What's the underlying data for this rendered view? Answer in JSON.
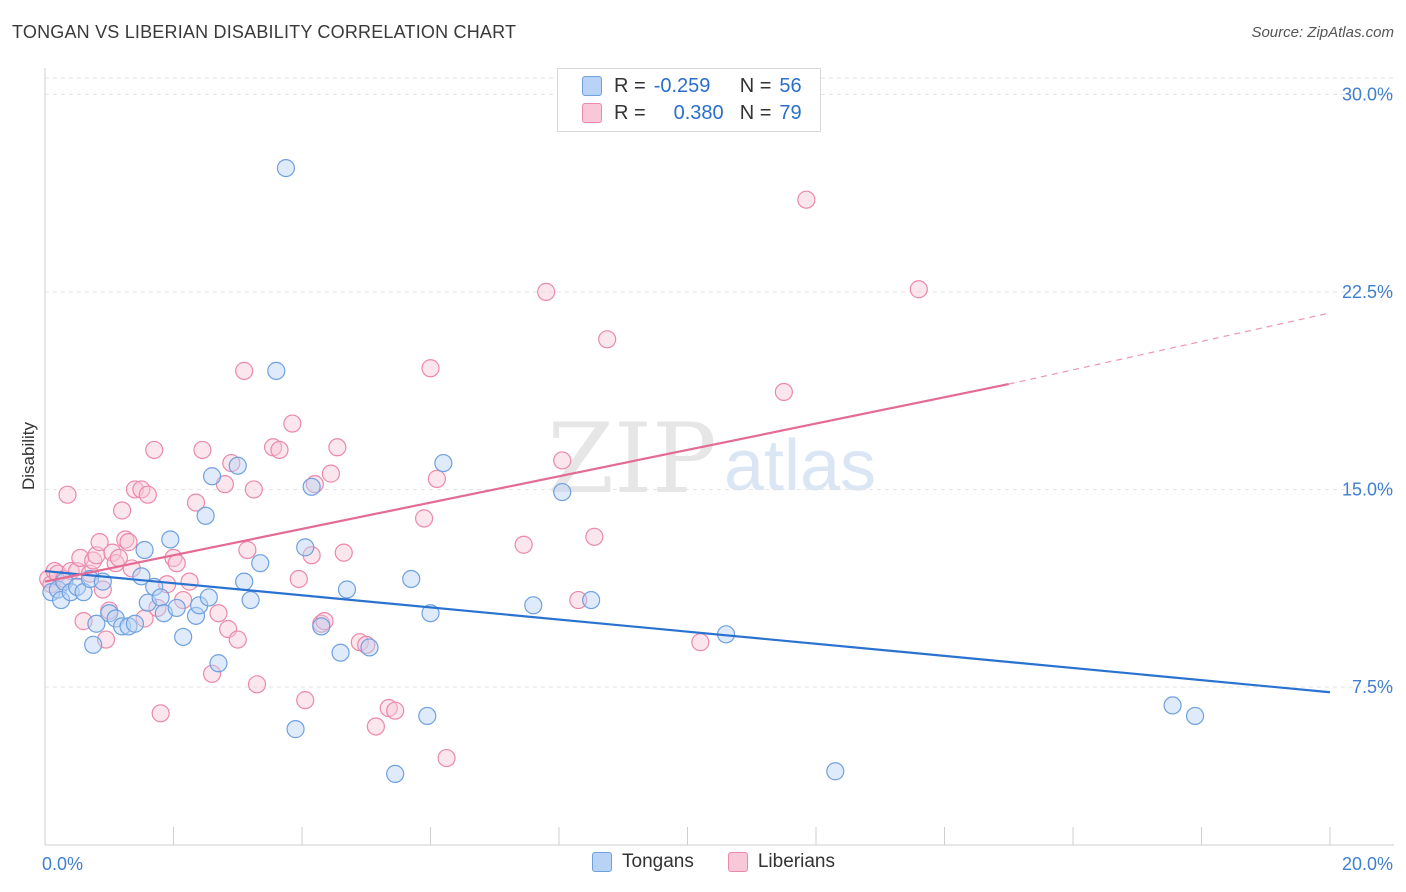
{
  "title": "TONGAN VS LIBERIAN DISABILITY CORRELATION CHART",
  "source": "Source: ZipAtlas.com",
  "watermark": {
    "zip": "ZIP",
    "atlas": "atlas"
  },
  "legend_top": {
    "rows": [
      {
        "r_label": "R =",
        "r_value": "-0.259",
        "n_label": "N =",
        "n_value": "56"
      },
      {
        "r_label": "R =",
        "r_value": "0.380",
        "n_label": "N =",
        "n_value": "79"
      }
    ]
  },
  "colors": {
    "tongans_fill": "#b8d3f5",
    "tongans_stroke": "#6fa0e0",
    "tongans_line": "#2a72d0",
    "liberians_fill": "#f8c8d8",
    "liberians_stroke": "#ea89aa",
    "liberians_line": "#e46b94",
    "axis_label": "#3f7fd0",
    "grid": "#e3e3e3"
  },
  "chart_data": {
    "type": "scatter",
    "title": "TONGAN VS LIBERIAN DISABILITY CORRELATION CHART",
    "xlabel": "",
    "ylabel": "Disability",
    "xlim": [
      0,
      20
    ],
    "ylim": [
      1.5,
      31
    ],
    "x_tick_labels": [
      "0.0%",
      "20.0%"
    ],
    "y_ticks": [
      7.5,
      15.0,
      22.5,
      30.0
    ],
    "y_tick_labels": [
      "7.5%",
      "15.0%",
      "22.5%",
      "30.0%"
    ],
    "grid": "horizontal dashed",
    "legend_position": "bottom",
    "series": [
      {
        "name": "Tongans",
        "r": -0.259,
        "n": 56,
        "trend": {
          "x": [
            0,
            20
          ],
          "y": [
            11.9,
            7.3
          ]
        },
        "points": [
          [
            0.1,
            11.1
          ],
          [
            0.2,
            11.2
          ],
          [
            0.25,
            10.8
          ],
          [
            0.3,
            11.5
          ],
          [
            0.4,
            11.1
          ],
          [
            0.5,
            11.3
          ],
          [
            0.6,
            11.1
          ],
          [
            0.7,
            11.6
          ],
          [
            0.75,
            9.1
          ],
          [
            0.8,
            9.9
          ],
          [
            0.9,
            11.5
          ],
          [
            1.0,
            10.3
          ],
          [
            1.1,
            10.1
          ],
          [
            1.2,
            9.8
          ],
          [
            1.3,
            9.8
          ],
          [
            1.4,
            9.9
          ],
          [
            1.5,
            11.7
          ],
          [
            1.55,
            12.7
          ],
          [
            1.6,
            10.7
          ],
          [
            1.7,
            11.3
          ],
          [
            1.8,
            10.9
          ],
          [
            1.85,
            10.3
          ],
          [
            1.95,
            13.1
          ],
          [
            2.05,
            10.5
          ],
          [
            2.15,
            9.4
          ],
          [
            2.35,
            10.2
          ],
          [
            2.4,
            10.6
          ],
          [
            2.5,
            14.0
          ],
          [
            2.55,
            10.9
          ],
          [
            2.6,
            15.5
          ],
          [
            2.7,
            8.4
          ],
          [
            3.0,
            15.9
          ],
          [
            3.1,
            11.5
          ],
          [
            3.2,
            10.8
          ],
          [
            3.35,
            12.2
          ],
          [
            3.6,
            19.5
          ],
          [
            3.75,
            27.2
          ],
          [
            3.9,
            5.9
          ],
          [
            4.05,
            12.8
          ],
          [
            4.15,
            15.1
          ],
          [
            4.3,
            9.8
          ],
          [
            4.6,
            8.8
          ],
          [
            4.7,
            11.2
          ],
          [
            5.05,
            9.0
          ],
          [
            5.45,
            4.2
          ],
          [
            5.7,
            11.6
          ],
          [
            5.95,
            6.4
          ],
          [
            6.0,
            10.3
          ],
          [
            6.2,
            16.0
          ],
          [
            7.6,
            10.6
          ],
          [
            8.05,
            14.9
          ],
          [
            8.5,
            10.8
          ],
          [
            10.6,
            9.5
          ],
          [
            12.3,
            4.3
          ],
          [
            17.55,
            6.8
          ],
          [
            17.9,
            6.4
          ]
        ]
      },
      {
        "name": "Liberians",
        "r": 0.38,
        "n": 79,
        "trend": {
          "x": [
            0,
            15
          ],
          "y": [
            11.5,
            19.0
          ]
        },
        "trend_dashed": {
          "x": [
            15,
            20
          ],
          "y": [
            19.0,
            21.7
          ]
        },
        "points": [
          [
            0.05,
            11.6
          ],
          [
            0.1,
            11.4
          ],
          [
            0.15,
            11.9
          ],
          [
            0.2,
            11.8
          ],
          [
            0.3,
            11.6
          ],
          [
            0.35,
            14.8
          ],
          [
            0.4,
            11.9
          ],
          [
            0.5,
            11.9
          ],
          [
            0.55,
            12.4
          ],
          [
            0.6,
            10.0
          ],
          [
            0.7,
            11.8
          ],
          [
            0.75,
            12.3
          ],
          [
            0.8,
            12.5
          ],
          [
            0.85,
            13.0
          ],
          [
            0.9,
            11.2
          ],
          [
            0.95,
            9.3
          ],
          [
            1.0,
            10.4
          ],
          [
            1.05,
            12.6
          ],
          [
            1.1,
            12.2
          ],
          [
            1.15,
            12.4
          ],
          [
            1.2,
            14.2
          ],
          [
            1.25,
            13.1
          ],
          [
            1.3,
            13.0
          ],
          [
            1.35,
            12.0
          ],
          [
            1.4,
            15.0
          ],
          [
            1.5,
            15.0
          ],
          [
            1.55,
            10.1
          ],
          [
            1.6,
            14.8
          ],
          [
            1.7,
            16.5
          ],
          [
            1.75,
            10.5
          ],
          [
            1.8,
            6.5
          ],
          [
            1.9,
            11.4
          ],
          [
            2.0,
            12.4
          ],
          [
            2.05,
            12.2
          ],
          [
            2.15,
            10.8
          ],
          [
            2.25,
            11.5
          ],
          [
            2.35,
            14.5
          ],
          [
            2.45,
            16.5
          ],
          [
            2.6,
            8.0
          ],
          [
            2.7,
            10.3
          ],
          [
            2.8,
            15.2
          ],
          [
            2.85,
            9.7
          ],
          [
            2.9,
            16.0
          ],
          [
            3.0,
            9.3
          ],
          [
            3.1,
            19.5
          ],
          [
            3.15,
            12.7
          ],
          [
            3.25,
            15.0
          ],
          [
            3.3,
            7.6
          ],
          [
            3.55,
            16.6
          ],
          [
            3.65,
            16.5
          ],
          [
            3.85,
            17.5
          ],
          [
            3.95,
            11.6
          ],
          [
            4.05,
            7.0
          ],
          [
            4.15,
            12.5
          ],
          [
            4.2,
            15.2
          ],
          [
            4.3,
            9.9
          ],
          [
            4.35,
            10.0
          ],
          [
            4.45,
            15.6
          ],
          [
            4.55,
            16.6
          ],
          [
            4.65,
            12.6
          ],
          [
            4.9,
            9.2
          ],
          [
            5.0,
            9.1
          ],
          [
            5.15,
            6.0
          ],
          [
            5.35,
            6.7
          ],
          [
            5.45,
            6.6
          ],
          [
            5.9,
            13.9
          ],
          [
            6.0,
            19.6
          ],
          [
            6.1,
            15.4
          ],
          [
            6.25,
            4.8
          ],
          [
            7.45,
            12.9
          ],
          [
            7.8,
            22.5
          ],
          [
            8.05,
            16.1
          ],
          [
            8.3,
            10.8
          ],
          [
            8.55,
            13.2
          ],
          [
            8.75,
            20.7
          ],
          [
            10.2,
            9.2
          ],
          [
            11.5,
            18.7
          ],
          [
            11.85,
            26.0
          ],
          [
            13.6,
            22.6
          ]
        ]
      }
    ]
  }
}
